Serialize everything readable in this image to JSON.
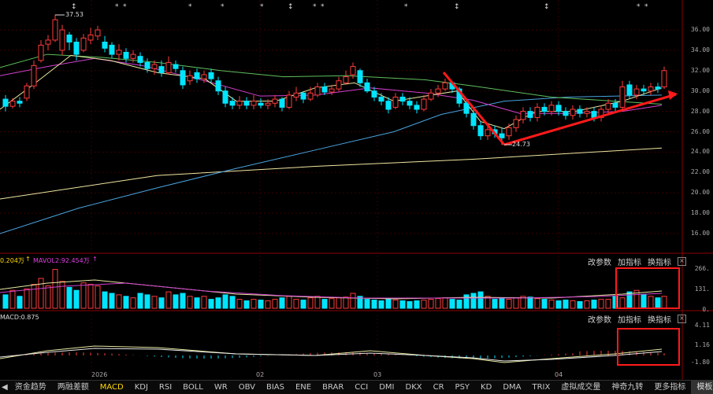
{
  "main_chart": {
    "y_ticks": [
      "36.00",
      "34.00",
      "32.00",
      "30.00",
      "28.00",
      "26.00",
      "24.00",
      "22.00",
      "20.00",
      "18.00",
      "16.00"
    ],
    "high_label": "37.53",
    "low_label": "24.73",
    "x_labels": [
      "2026",
      "02",
      "03",
      "04"
    ]
  },
  "volume_panel": {
    "legend_a": "0.204万",
    "legend_b": "MAVOL2:92.454万",
    "y_ticks": [
      "266.",
      "131.",
      "0."
    ],
    "tools": [
      "改参数",
      "加指标",
      "换指标"
    ]
  },
  "macd_panel": {
    "legend": "MACD:0.875",
    "y_ticks": [
      "4.11",
      "1.16",
      "-1.80"
    ],
    "tools": [
      "改参数",
      "加指标",
      "换指标"
    ]
  },
  "bottom_tabs": [
    "资金趋势",
    "两融差额",
    "MACD",
    "KDJ",
    "RSI",
    "BOLL",
    "WR",
    "OBV",
    "BIAS",
    "ENE",
    "BRAR",
    "CCI",
    "DMI",
    "DKX",
    "CR",
    "PSY",
    "KD",
    "DMA",
    "TRIX",
    "虚拟成交量",
    "神奇九转",
    "更多指标",
    "模板"
  ],
  "active_tab": "MACD",
  "colors": {
    "up": "#ff3b3b",
    "down": "#00e5ff",
    "annotation": "#ff1a1a",
    "ma_yellow": "#e8e8a0",
    "ma_pink": "#d040d0",
    "ma_green": "#5fbf5f",
    "ma_blue": "#4aa3df",
    "ma_cream": "#f0e6a0"
  }
}
